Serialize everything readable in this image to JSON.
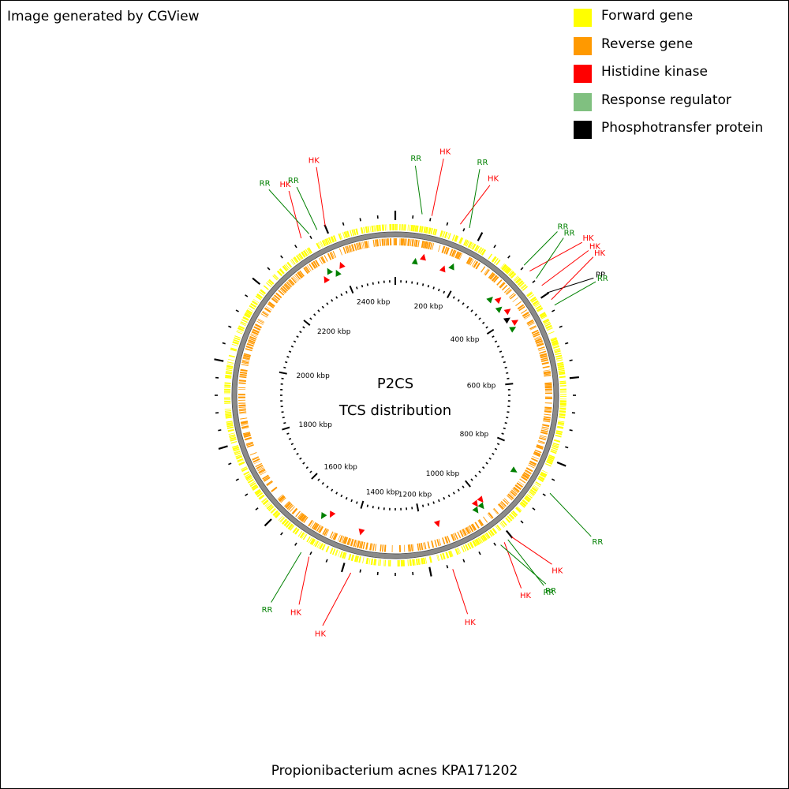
{
  "header": {
    "credit": "Image generated by CGView"
  },
  "legend": {
    "items": [
      {
        "label": "Forward gene",
        "color": "#ffff00"
      },
      {
        "label": "Reverse gene",
        "color": "#ff9900"
      },
      {
        "label": "Histidine kinase",
        "color": "#ff0000"
      },
      {
        "label": "Response regulator",
        "color": "#80c080"
      },
      {
        "label": "Phosphotransfer protein",
        "color": "#000000"
      }
    ]
  },
  "map": {
    "center_title": "P2CS",
    "center_subtitle": "TCS distribution",
    "genome_title": "Propionibacterium acnes KPA171202",
    "genome_length_kbp": 2560,
    "scale_labels": [
      {
        "kbp": 200,
        "label": "200 kbp"
      },
      {
        "kbp": 400,
        "label": "400 kbp"
      },
      {
        "kbp": 600,
        "label": "600 kbp"
      },
      {
        "kbp": 800,
        "label": "800 kbp"
      },
      {
        "kbp": 1000,
        "label": "1000 kbp"
      },
      {
        "kbp": 1200,
        "label": "1200 kbp"
      },
      {
        "kbp": 1400,
        "label": "1400 kbp"
      },
      {
        "kbp": 1600,
        "label": "1600 kbp"
      },
      {
        "kbp": 1800,
        "label": "1800 kbp"
      },
      {
        "kbp": 2000,
        "label": "2000 kbp"
      },
      {
        "kbp": 2200,
        "label": "2200 kbp"
      },
      {
        "kbp": 2400,
        "label": "2400 kbp"
      }
    ],
    "features": [
      {
        "kbp": 60,
        "type": "RR",
        "label": "RR"
      },
      {
        "kbp": 82,
        "type": "HK",
        "label": "HK"
      },
      {
        "kbp": 148,
        "type": "HK",
        "label": "HK"
      },
      {
        "kbp": 170,
        "type": "RR",
        "label": "RR"
      },
      {
        "kbp": 318,
        "type": "RR",
        "label": "RR"
      },
      {
        "kbp": 336,
        "type": "HK",
        "label": "HK"
      },
      {
        "kbp": 358,
        "type": "RR",
        "label": "RR"
      },
      {
        "kbp": 378,
        "type": "HK",
        "label": "HK"
      },
      {
        "kbp": 398,
        "type": "PP",
        "label": "PP"
      },
      {
        "kbp": 416,
        "type": "HK",
        "label": "HK"
      },
      {
        "kbp": 430,
        "type": "RR",
        "label": "RR"
      },
      {
        "kbp": 870,
        "type": "RR",
        "label": "RR"
      },
      {
        "kbp": 1000,
        "type": "HK",
        "label": "HK"
      },
      {
        "kbp": 1010,
        "type": "RR",
        "label": "RR"
      },
      {
        "kbp": 1020,
        "type": "HK",
        "label": "HK"
      },
      {
        "kbp": 1030,
        "type": "RR",
        "label": "RR"
      },
      {
        "kbp": 1150,
        "type": "HK",
        "label": "HK"
      },
      {
        "kbp": 1380,
        "type": "HK",
        "label": "HK"
      },
      {
        "kbp": 1480,
        "type": "HK",
        "label": "HK"
      },
      {
        "kbp": 1500,
        "type": "RR",
        "label": "RR"
      },
      {
        "kbp": 2340,
        "type": "HK",
        "label": "HK"
      },
      {
        "kbp": 2360,
        "type": "RR",
        "label": "RR"
      },
      {
        "kbp": 2380,
        "type": "RR",
        "label": "RR"
      },
      {
        "kbp": 2400,
        "type": "HK",
        "label": "HK"
      }
    ],
    "type_colors": {
      "HK": "#ff0000",
      "RR": "#008000",
      "PP": "#000000"
    }
  }
}
